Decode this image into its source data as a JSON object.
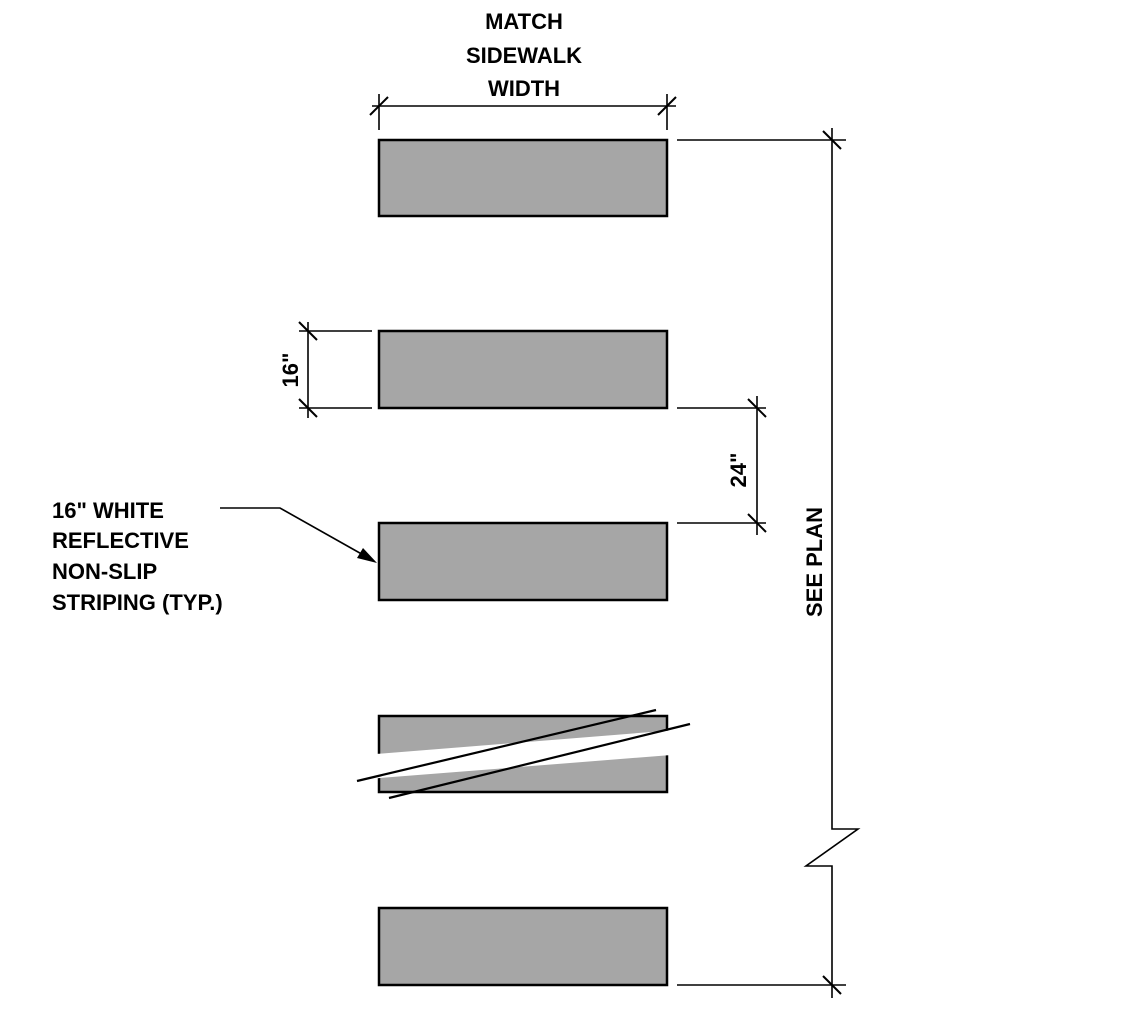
{
  "labels": {
    "top_line1": "MATCH",
    "top_line2": "SIDEWALK",
    "top_line3": "WIDTH",
    "stripe_height": "16\"",
    "gap_height": "24\"",
    "callout_line1": "16\" WHITE",
    "callout_line2": "REFLECTIVE",
    "callout_line3": "NON-SLIP",
    "callout_line4": "STRIPING (TYP.)",
    "overall_length": "SEE PLAN"
  },
  "colors": {
    "stripe_fill": "#a6a6a6",
    "line": "#000000",
    "background": "#ffffff"
  }
}
